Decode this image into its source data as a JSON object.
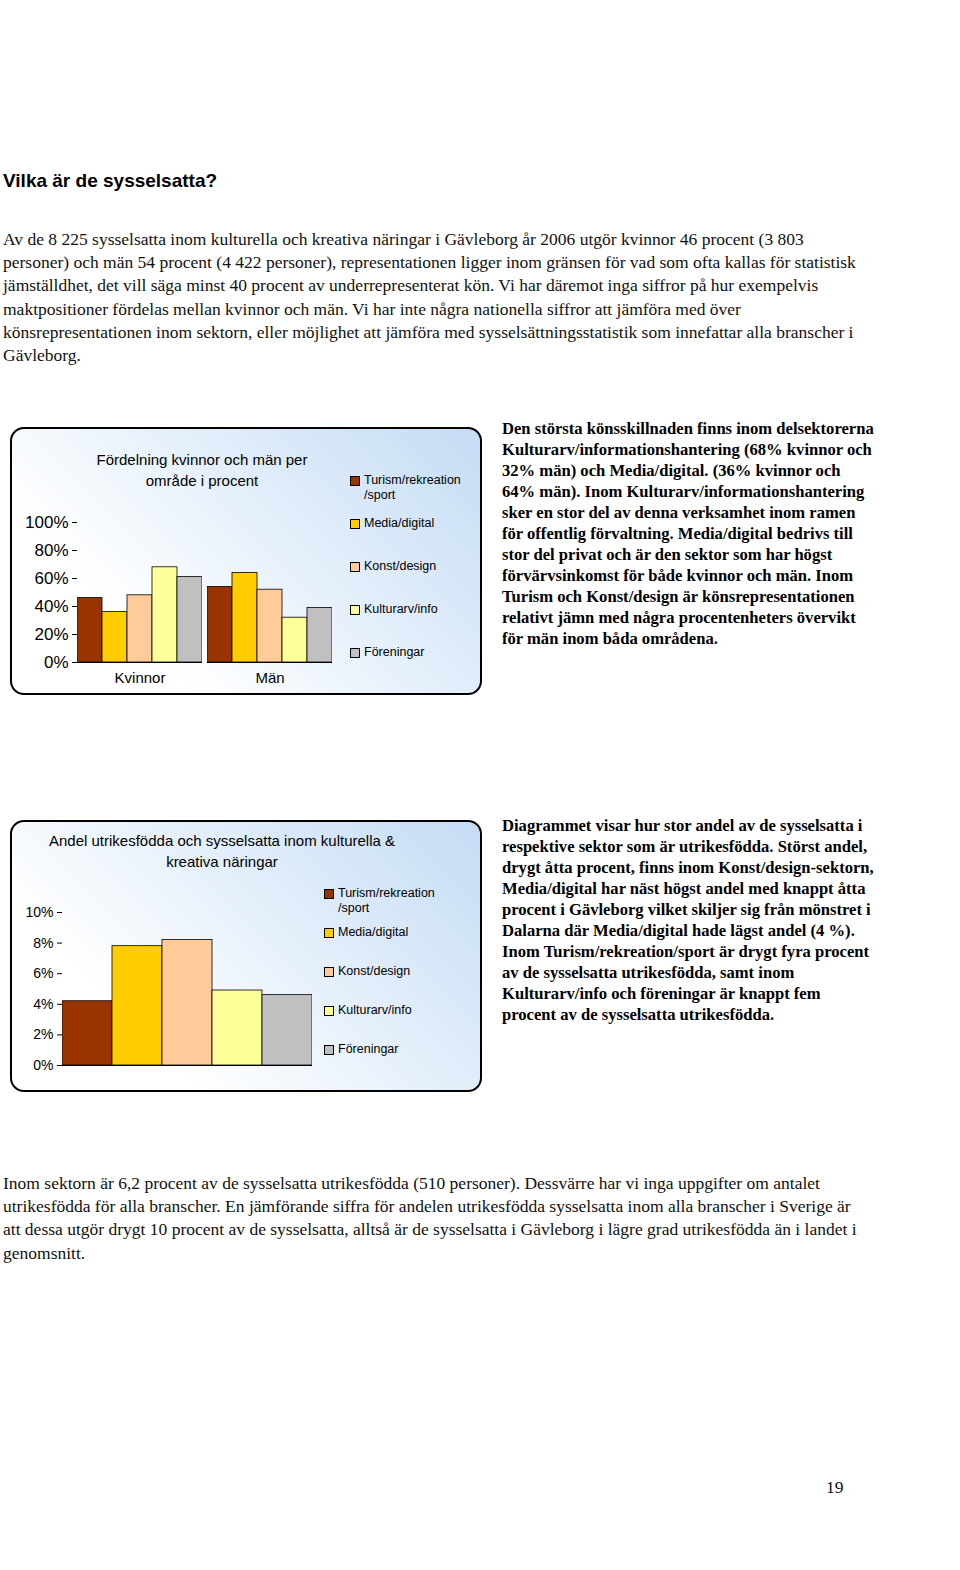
{
  "document": {
    "heading": "Vilka är de sysselsatta?",
    "intro": "Av de 8 225 sysselsatta inom kulturella och kreativa näringar i Gävleborg år 2006 utgör kvinnor 46 procent (3 803 personer) och män 54 procent (4 422 personer), representationen ligger inom gränsen för vad som ofta kallas för statistisk jämställdhet, det vill säga minst 40 procent av underrepresenterat kön. Vi har däremot inga siffror på hur exempelvis maktpositioner fördelas mellan kvinnor och män. Vi har inte några nationella siffror att jämföra med över könsrepresentationen inom sektorn, eller möjlighet att jämföra med sysselsättningsstatistik som innefattar alla branscher i Gävleborg.",
    "side_texts": [
      "Den största könsskillnaden finns inom delsektorerna Kulturarv/informationshantering (68% kvinnor och 32% män) och Media/digital. (36% kvinnor och 64% män). Inom Kulturarv/informationshantering sker en stor del av denna verksamhet inom ramen för offentlig förvaltning. Media/digital bedrivs till stor del privat och är den sektor som har högst förvärvsinkomst för både kvinnor och män. Inom Turism och Konst/design är könsrepresentationen relativt jämn med några procentenheters övervikt för män inom båda områdena.",
      "Diagrammet visar hur stor andel av de sysselsatta i respektive sektor som är utrikesfödda. Störst andel, drygt åtta procent, finns inom Konst/design-sektorn, Media/digital har näst högst andel med knappt åtta procent i Gävleborg vilket skiljer sig från mönstret i Dalarna där Media/digital hade lägst andel (4 %). Inom Turism/rekreation/sport är drygt fyra procent av de sysselsatta utrikesfödda, samt inom Kulturarv/info och föreningar är knappt fem procent av de sysselsatta utrikesfödda."
    ],
    "outro": "Inom sektorn är 6,2 procent av de sysselsatta utrikesfödda (510 personer). Dessvärre har vi inga uppgifter om antalet utrikesfödda för alla branscher. En jämförande siffra för andelen utrikesfödda sysselsatta inom alla branscher i Sverige är att dessa utgör drygt 10 procent av de sysselsatta, alltså är de sysselsatta i Gävleborg i lägre grad utrikesfödda än i landet i genomsnitt.",
    "page_number": "19"
  },
  "chart_data": [
    {
      "type": "bar",
      "title": "Fördelning kvinnor och män per område i procent",
      "categories": [
        "Kvinnor",
        "Män"
      ],
      "series": [
        {
          "name": "Turism/rekreation /sport",
          "color": "#993300",
          "values": [
            46,
            54
          ]
        },
        {
          "name": "Media/digital",
          "color": "#ffcc00",
          "values": [
            36,
            64
          ]
        },
        {
          "name": "Konst/design",
          "color": "#ffcc99",
          "values": [
            48,
            52
          ]
        },
        {
          "name": "Kulturarv/info",
          "color": "#ffff99",
          "values": [
            68,
            32
          ]
        },
        {
          "name": "Föreningar",
          "color": "#c0c0c0",
          "values": [
            61,
            39
          ]
        }
      ],
      "ylim": [
        0,
        100
      ],
      "yticks": [
        {
          "value": 0,
          "label": "0%"
        },
        {
          "value": 20,
          "label": "20%"
        },
        {
          "value": 40,
          "label": "40%"
        },
        {
          "value": 60,
          "label": "60%"
        },
        {
          "value": 80,
          "label": "80%"
        },
        {
          "value": 100,
          "label": "100%"
        }
      ],
      "grid": false,
      "legend": "right"
    },
    {
      "type": "bar",
      "title": "Andel utrikesfödda och sysselsatta inom kulturella & kreativa näringar",
      "categories": [
        null
      ],
      "series": [
        {
          "name": "Turism/rekreation /sport",
          "color": "#993300",
          "values": [
            4.2
          ]
        },
        {
          "name": "Media/digital",
          "color": "#ffcc00",
          "values": [
            7.8
          ]
        },
        {
          "name": "Konst/design",
          "color": "#ffcc99",
          "values": [
            8.2
          ]
        },
        {
          "name": "Kulturarv/info",
          "color": "#ffff99",
          "values": [
            4.9
          ]
        },
        {
          "name": "Föreningar",
          "color": "#c0c0c0",
          "values": [
            4.6
          ]
        }
      ],
      "ylim": [
        0,
        10
      ],
      "yticks": [
        {
          "value": 0,
          "label": "0%"
        },
        {
          "value": 2,
          "label": "2%"
        },
        {
          "value": 4,
          "label": "4%"
        },
        {
          "value": 6,
          "label": "6%"
        },
        {
          "value": 8,
          "label": "8%"
        },
        {
          "value": 10,
          "label": "10%"
        }
      ],
      "grid": false,
      "legend": "right",
      "tick_labels": "y"
    }
  ]
}
